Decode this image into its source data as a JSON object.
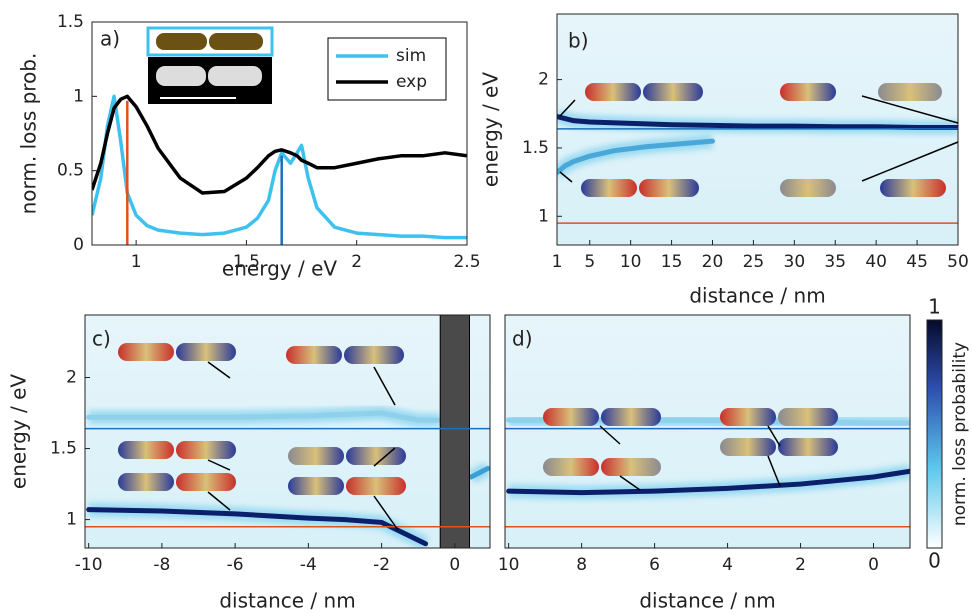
{
  "chart_data": [
    {
      "type": "line",
      "panel": "a)",
      "xlabel": "energy / eV",
      "ylabel": "norm. loss prob.",
      "xlim": [
        0.8,
        2.5
      ],
      "ylim": [
        0,
        1.5
      ],
      "xticks": [
        1,
        1.5,
        2,
        2.5
      ],
      "yticks": [
        0,
        0.5,
        1,
        1.5
      ],
      "x": [
        0.8,
        0.84,
        0.87,
        0.9,
        0.93,
        0.96,
        1.0,
        1.05,
        1.1,
        1.2,
        1.3,
        1.4,
        1.5,
        1.55,
        1.6,
        1.63,
        1.66,
        1.7,
        1.73,
        1.75,
        1.78,
        1.82,
        1.9,
        2.0,
        2.1,
        2.2,
        2.3,
        2.4,
        2.5
      ],
      "series": [
        {
          "name": "sim",
          "color": "#3ec1ef",
          "values": [
            0.2,
            0.45,
            0.8,
            1.0,
            0.7,
            0.35,
            0.2,
            0.13,
            0.1,
            0.08,
            0.07,
            0.08,
            0.12,
            0.18,
            0.3,
            0.5,
            0.62,
            0.55,
            0.62,
            0.67,
            0.45,
            0.25,
            0.12,
            0.08,
            0.07,
            0.06,
            0.06,
            0.05,
            0.05
          ]
        },
        {
          "name": "exp",
          "color": "#000000",
          "values": [
            0.37,
            0.55,
            0.75,
            0.92,
            0.98,
            1.0,
            0.93,
            0.8,
            0.65,
            0.45,
            0.35,
            0.36,
            0.45,
            0.52,
            0.6,
            0.63,
            0.64,
            0.62,
            0.6,
            0.57,
            0.55,
            0.52,
            0.52,
            0.55,
            0.58,
            0.6,
            0.6,
            0.62,
            0.6
          ]
        }
      ],
      "vlines": [
        {
          "x": 0.96,
          "y": 0.97,
          "color": "#e0521c"
        },
        {
          "x": 1.66,
          "y": 0.6,
          "color": "#1d6fb8"
        }
      ]
    },
    {
      "type": "heatmap",
      "panel": "b)",
      "xlabel": "distance / nm",
      "ylabel": "energy / eV",
      "xlim": [
        1,
        50
      ],
      "ylim": [
        0.79,
        2.48
      ],
      "xticks": [
        1,
        5,
        10,
        15,
        20,
        25,
        30,
        35,
        40,
        45,
        50
      ],
      "yticks": [
        1,
        1.5,
        2
      ],
      "hlines": [
        {
          "value": 1.64,
          "color": "#1d6fb8"
        },
        {
          "value": 0.95,
          "color": "#e0521c"
        }
      ],
      "ridges": [
        {
          "color": "#0b1f6b",
          "x": [
            1,
            3,
            5,
            10,
            15,
            20,
            25,
            30,
            35,
            40,
            45,
            50
          ],
          "y": [
            1.73,
            1.7,
            1.69,
            1.68,
            1.67,
            1.665,
            1.66,
            1.66,
            1.655,
            1.655,
            1.65,
            1.65
          ]
        },
        {
          "color": "#4aa8d8",
          "x": [
            1,
            2,
            3,
            5,
            8,
            12,
            16,
            20
          ],
          "y": [
            1.32,
            1.37,
            1.4,
            1.44,
            1.48,
            1.51,
            1.53,
            1.55
          ]
        }
      ]
    },
    {
      "type": "heatmap",
      "panel": "c)",
      "xlabel": "distance / nm",
      "ylabel": "energy / eV",
      "xlim": [
        -10.1,
        0.96
      ],
      "ylim": [
        0.8,
        2.44
      ],
      "xticks": [
        -10,
        -8,
        -6,
        -4,
        -2,
        0
      ],
      "yticks": [
        1,
        1.5,
        2
      ],
      "shaded_xrange": [
        -0.4,
        0.4
      ],
      "hlines": [
        {
          "value": 1.64,
          "color": "#1d6fb8"
        },
        {
          "value": 0.95,
          "color": "#e0521c"
        }
      ],
      "ridges": [
        {
          "color": "#0b1f6b",
          "x": [
            -10,
            -8,
            -6,
            -4,
            -3,
            -2,
            -1.6,
            -1.2,
            -0.8
          ],
          "y": [
            1.07,
            1.06,
            1.04,
            1.01,
            1.0,
            0.98,
            0.93,
            0.88,
            0.83
          ]
        },
        {
          "color": "#8fd0ea",
          "x": [
            -10,
            -6,
            -4,
            -2,
            -1,
            -0.4
          ],
          "y": [
            1.72,
            1.72,
            1.73,
            1.75,
            1.7,
            1.7
          ]
        },
        {
          "color": "#3aa0d4",
          "x": [
            0.45,
            0.9
          ],
          "y": [
            1.3,
            1.36
          ]
        }
      ]
    },
    {
      "type": "heatmap",
      "panel": "d)",
      "xlabel": "distance / nm",
      "xlim": [
        10.1,
        -1.0
      ],
      "ylim": [
        0.8,
        2.44
      ],
      "xticks": [
        10,
        8,
        6,
        4,
        2,
        0
      ],
      "hlines": [
        {
          "value": 1.64,
          "color": "#1d6fb8"
        },
        {
          "value": 0.95,
          "color": "#e0521c"
        }
      ],
      "ridges": [
        {
          "color": "#0b1f6b",
          "x": [
            10,
            8,
            6,
            4,
            2,
            0,
            -1
          ],
          "y": [
            1.2,
            1.19,
            1.2,
            1.22,
            1.25,
            1.3,
            1.34
          ]
        },
        {
          "color": "#8fd0ea",
          "x": [
            10,
            5,
            0,
            -1
          ],
          "y": [
            1.7,
            1.7,
            1.68,
            1.68
          ]
        }
      ],
      "colorbar": {
        "label": "norm. loss probability",
        "ticks": [
          0,
          1
        ]
      }
    }
  ]
}
